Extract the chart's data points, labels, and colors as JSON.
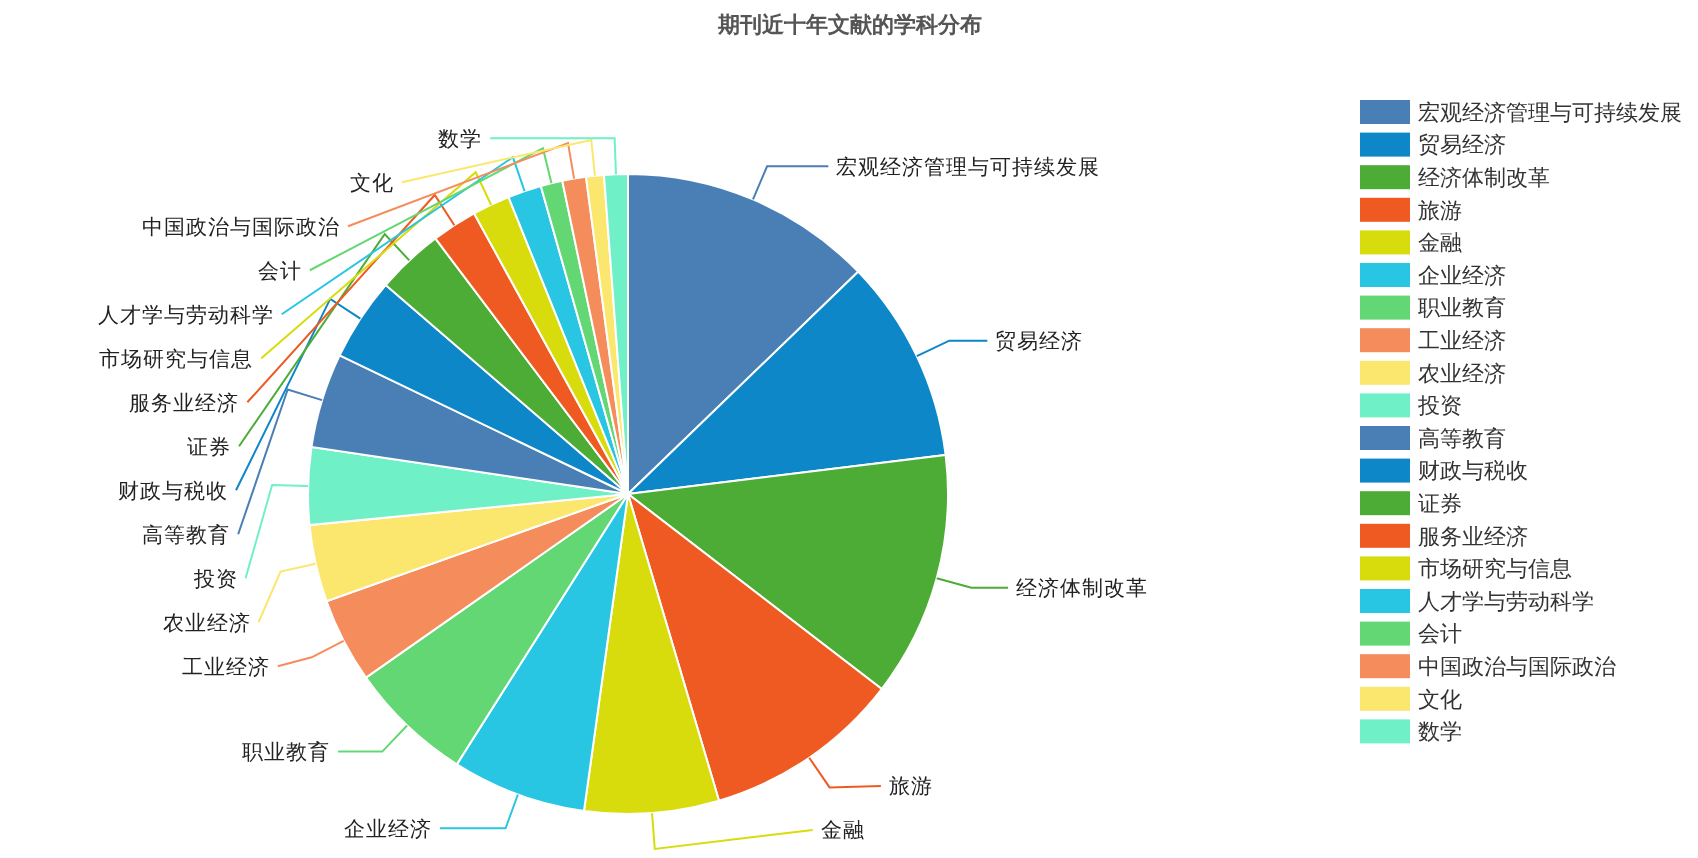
{
  "chart_data": {
    "type": "pie",
    "title": "期刊近十年文献的学科分布",
    "categories": [
      "宏观经济管理与可持续发展",
      "贸易经济",
      "经济体制改革",
      "旅游",
      "金融",
      "企业经济",
      "职业教育",
      "工业经济",
      "农业经济",
      "投资",
      "高等教育",
      "财政与税收",
      "证券",
      "服务业经济",
      "市场研究与信息",
      "人才学与劳动科学",
      "会计",
      "中国政治与国际政治",
      "文化",
      "数学"
    ],
    "values": [
      12.8,
      10.3,
      12.4,
      10.0,
      6.8,
      6.8,
      6.3,
      4.3,
      3.9,
      3.9,
      4.8,
      4.2,
      3.4,
      2.3,
      1.9,
      1.7,
      1.1,
      1.2,
      0.9,
      1.2
    ],
    "colors": [
      "#4a7fb5",
      "#0e87c8",
      "#4dac35",
      "#ee5a22",
      "#d9dc0c",
      "#28c6e2",
      "#63d774",
      "#f58c5c",
      "#fbe76e",
      "#6ff0c6",
      "#4a7fb5",
      "#0e87c8",
      "#4dac35",
      "#ee5a22",
      "#d9dc0c",
      "#28c6e2",
      "#63d774",
      "#f58c5c",
      "#fbe76e",
      "#6ff0c6"
    ],
    "legend": "right"
  }
}
